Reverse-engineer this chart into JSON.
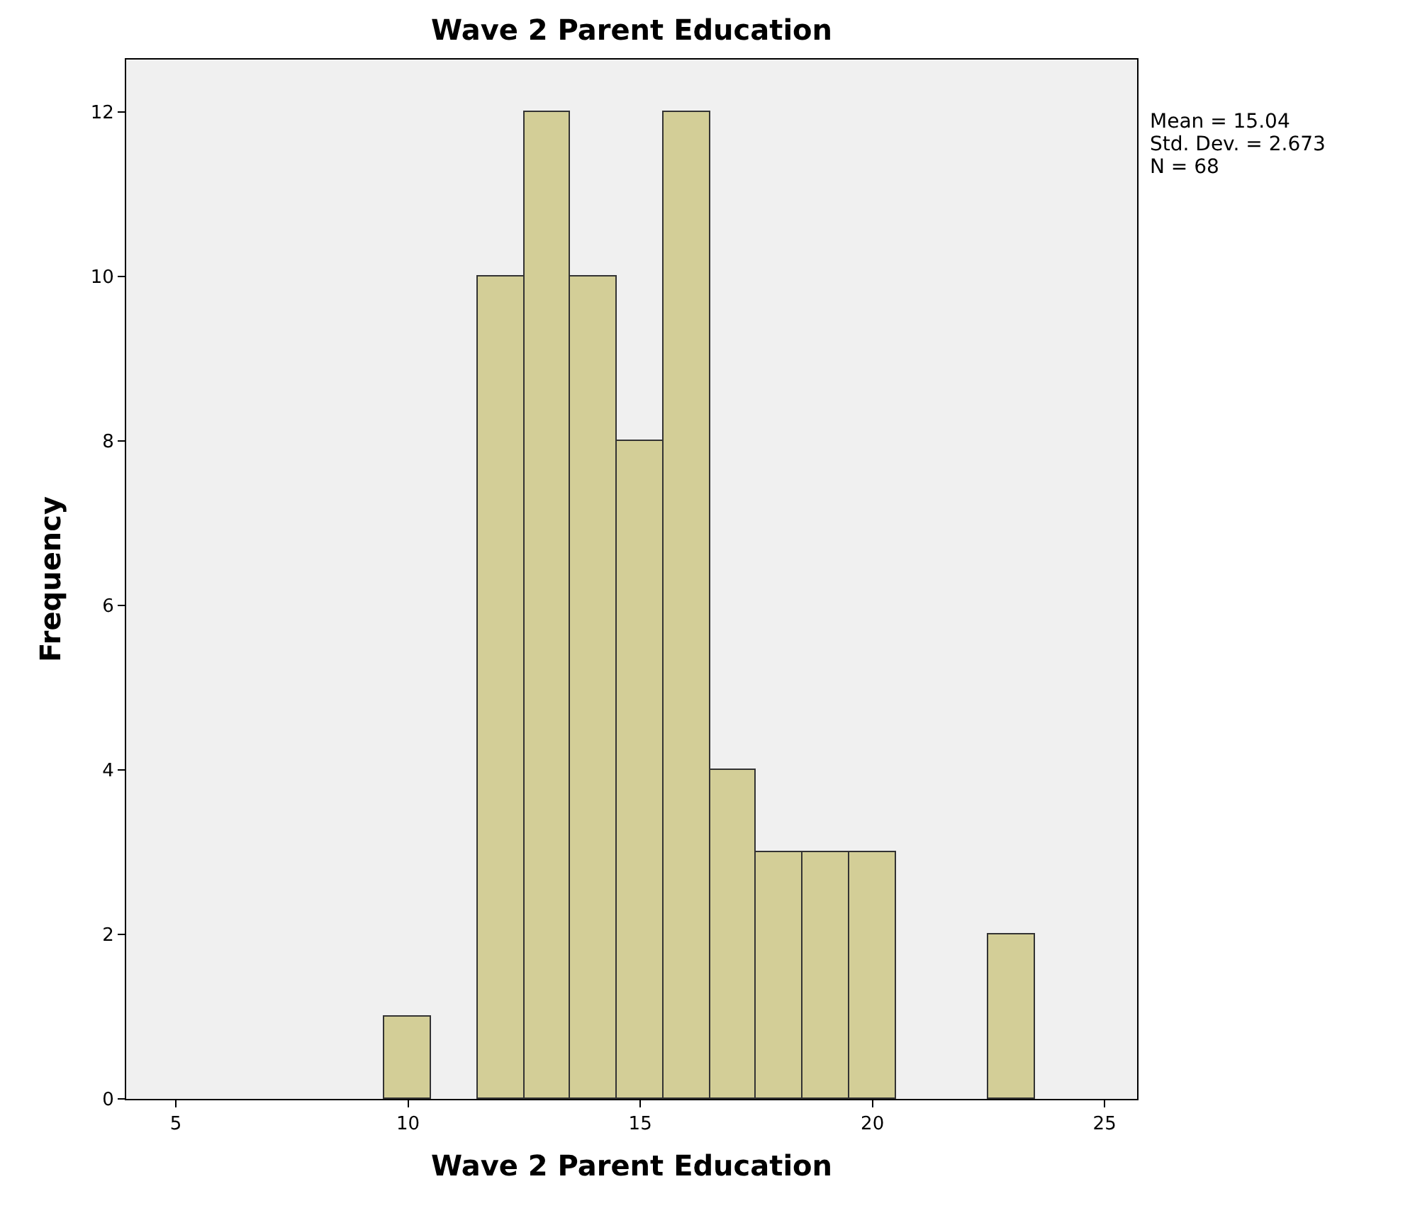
{
  "chart_data": {
    "type": "histogram",
    "title": "Wave 2 Parent Education",
    "xlabel": "Wave 2 Parent Education",
    "ylabel": "Frequency",
    "bins": [
      9.5,
      10.5,
      11.5,
      12.5,
      13.5,
      14.5,
      15.5,
      16.5,
      17.5,
      18.5,
      19.5,
      20.5,
      21.5,
      22.5,
      23.5
    ],
    "values": [
      1,
      0,
      10,
      12,
      10,
      8,
      12,
      4,
      3,
      3,
      3,
      0,
      0,
      2
    ],
    "color": "#d3ce97",
    "xlim": [
      3.93,
      25.7
    ],
    "xticks": [
      5,
      10,
      15,
      20,
      25
    ],
    "ylim": [
      0,
      12.64
    ],
    "yticks": [
      0,
      2,
      4,
      6,
      8,
      10,
      12
    ],
    "grid": false,
    "annotations": [
      "Mean = 15.04",
      "Std. Dev. = 2.673",
      "N = 68"
    ]
  }
}
